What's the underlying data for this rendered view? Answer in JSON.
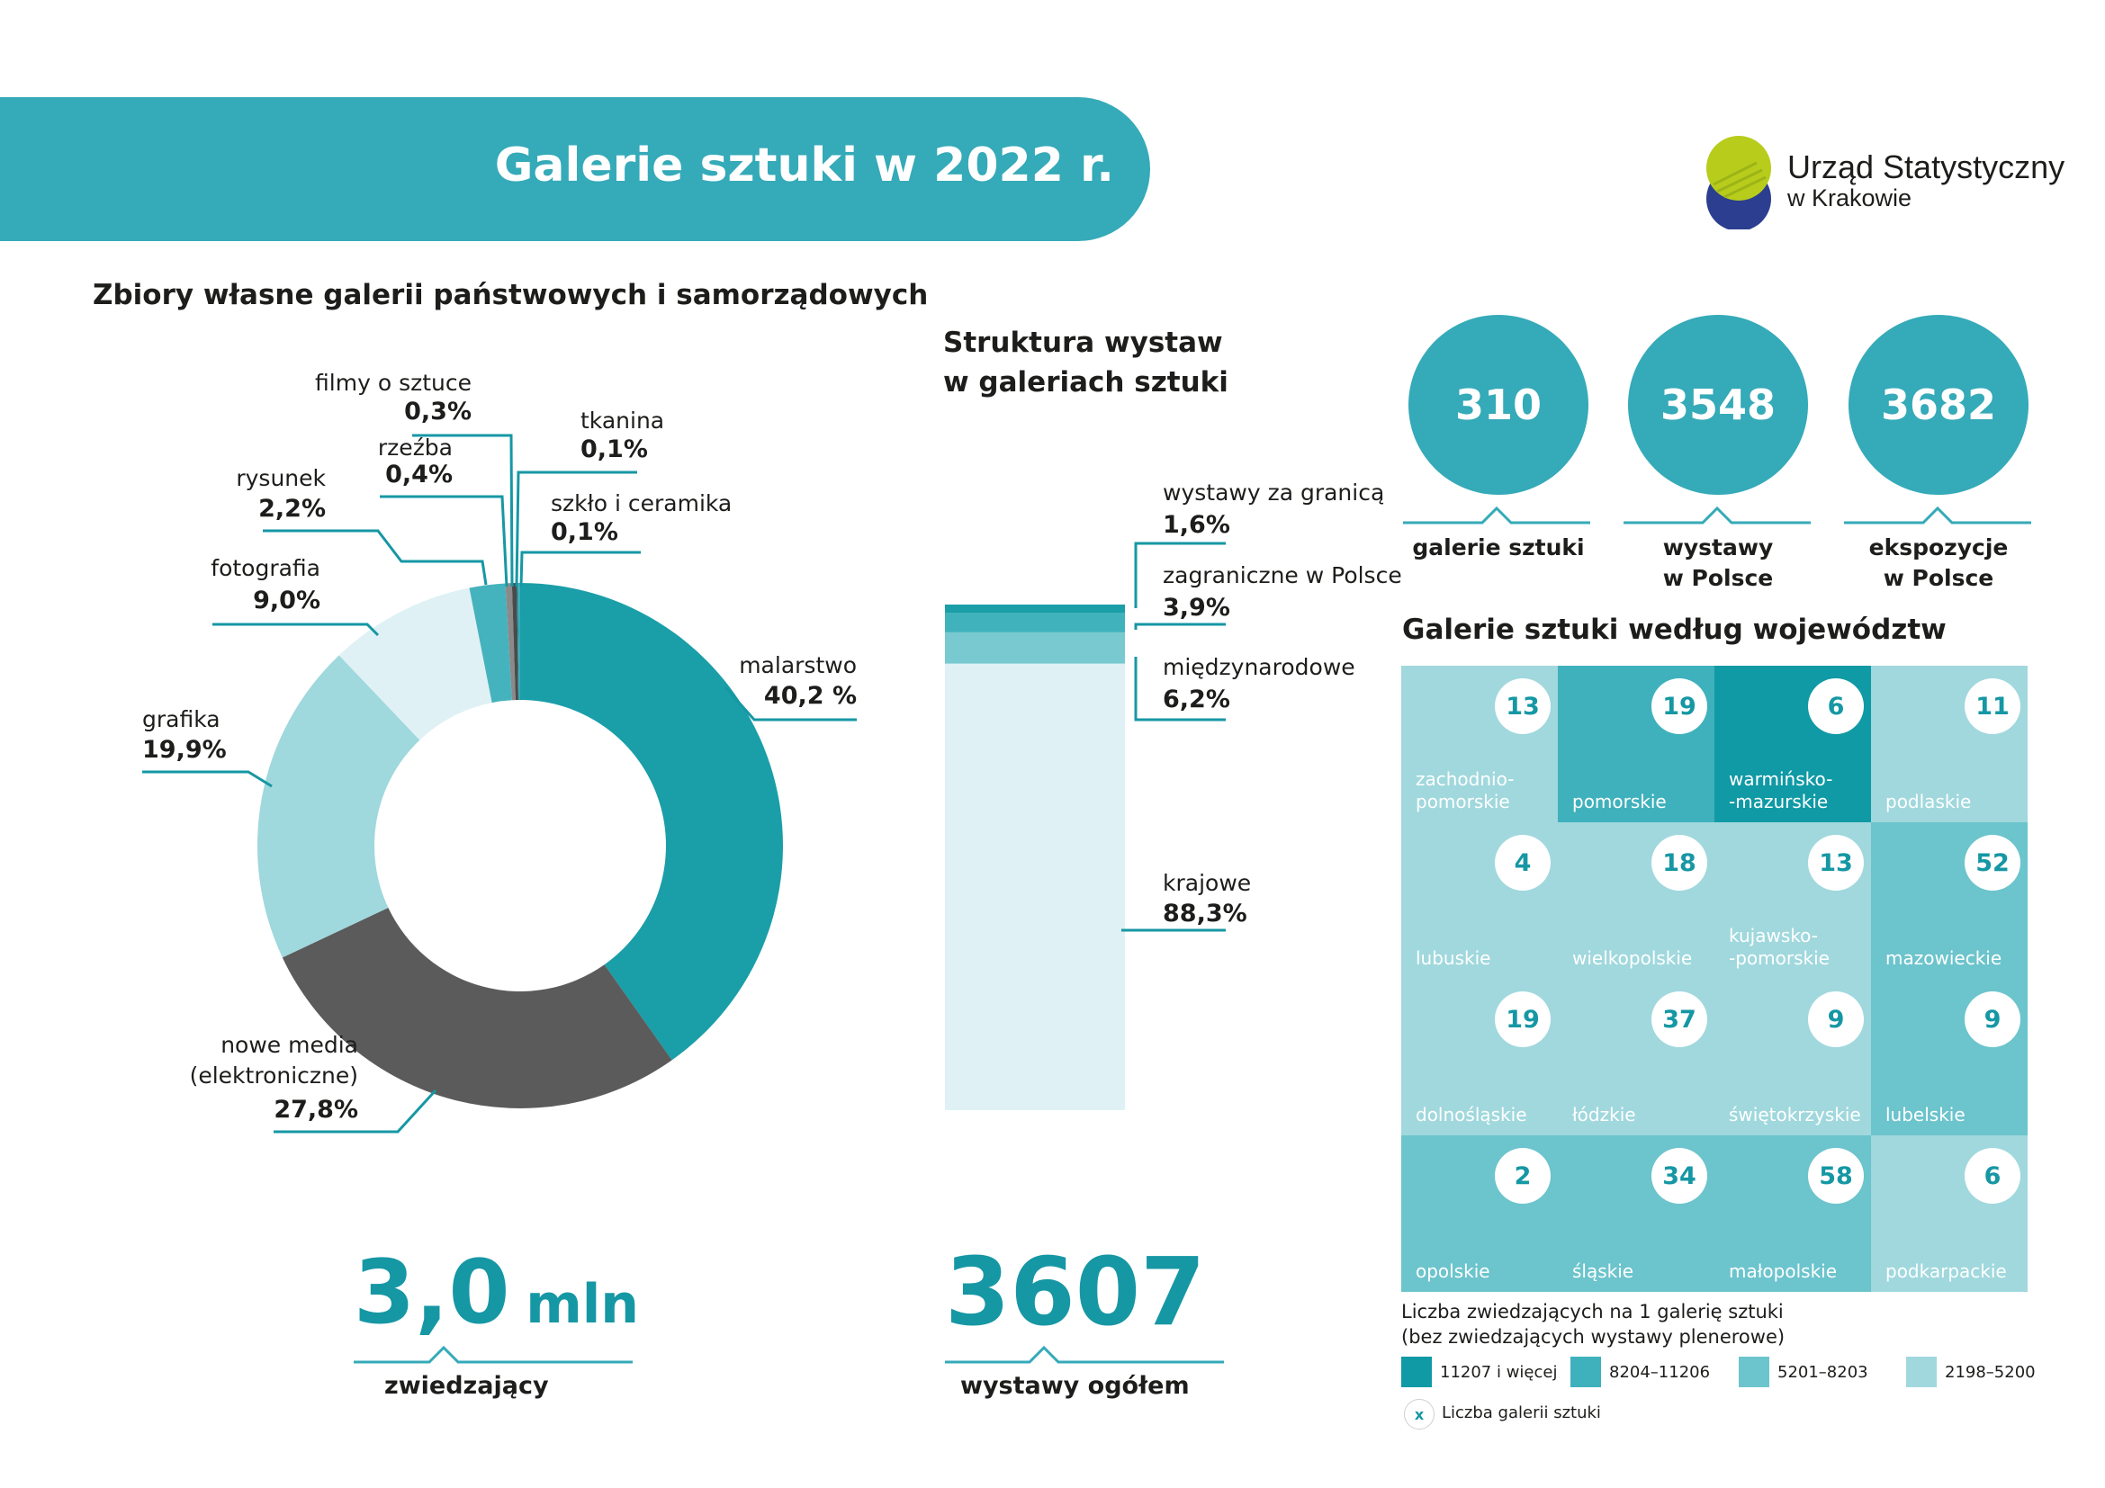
{
  "header": {
    "title": "Galerie sztuki w 2022 r."
  },
  "logo": {
    "line1": "Urząd Statystyczny",
    "line2": "w Krakowie"
  },
  "colors": {
    "accent": "#35aab8",
    "dark": "#1697a4",
    "grey": "#5b5b5b"
  },
  "collections": {
    "title": "Zbiory własne galerii państwowych i samorządowych",
    "big_value": "3,0",
    "big_unit": "mln",
    "big_label": "zwiedzający"
  },
  "exhibitions": {
    "title_line1": "Struktura wystaw",
    "title_line2": "w galeriach sztuki",
    "big_value": "3607",
    "big_label": "wystawy ogółem"
  },
  "stats": [
    {
      "value": "310",
      "label_line1": "galerie sztuki",
      "label_line2": ""
    },
    {
      "value": "3548",
      "label_line1": "wystawy",
      "label_line2": "w Polsce"
    },
    {
      "value": "3682",
      "label_line1": "ekspozycje",
      "label_line2": "w Polsce"
    }
  ],
  "map": {
    "title": "Galerie sztuki według województw",
    "legend_title_line1": "Liczba zwiedzających na 1 galerię sztuki",
    "legend_title_line2": "(bez zwiedzających wystawy plenerowe)",
    "legend": [
      {
        "label": "11207 i więcej",
        "color": "#0f9aa5"
      },
      {
        "label": "8204–11206",
        "color": "#3fb1bc"
      },
      {
        "label": "5201–8203",
        "color": "#6cc4cc"
      },
      {
        "label": "2198–5200",
        "color": "#a0d8dd"
      }
    ],
    "count_marker": "x",
    "count_label": "Liczba galerii sztuki"
  },
  "chart_data": [
    {
      "type": "pie",
      "title": "Zbiory własne galerii państwowych i samorządowych",
      "slices": [
        {
          "label": "malarstwo",
          "value": 40.2,
          "display": "40,2 %",
          "color": "#1a9ea8"
        },
        {
          "label": "nowe media",
          "label2": "(elektroniczne)",
          "value": 27.8,
          "display": "27,8%",
          "color": "#5b5b5b"
        },
        {
          "label": "grafika",
          "value": 19.9,
          "display": "19,9%",
          "color": "#9fd8dd"
        },
        {
          "label": "fotografia",
          "value": 9.0,
          "display": "9,0%",
          "color": "#dff1f5"
        },
        {
          "label": "rysunek",
          "value": 2.2,
          "display": "2,2%",
          "color": "#45b3bd"
        },
        {
          "label": "rzeźba",
          "value": 0.4,
          "display": "0,4%",
          "color": "#8a8a8a"
        },
        {
          "label": "filmy o sztuce",
          "value": 0.3,
          "display": "0,3%",
          "color": "#4a4a4a"
        },
        {
          "label": "tkanina",
          "value": 0.1,
          "display": "0,1%",
          "color": "#1a9ea8"
        },
        {
          "label": "szkło i ceramika",
          "value": 0.1,
          "display": "0,1%",
          "color": "#3fa9b3"
        }
      ]
    },
    {
      "type": "bar",
      "title": "Struktura wystaw w galeriach sztuki",
      "stacked": true,
      "segments": [
        {
          "label": "wystawy za granicą",
          "value": 1.6,
          "display": "1,6%",
          "color": "#1a9ea8"
        },
        {
          "label": "zagraniczne w Polsce",
          "value": 3.9,
          "display": "3,9%",
          "color": "#40b2bc"
        },
        {
          "label": "międzynarodowe",
          "value": 6.2,
          "display": "6,2%",
          "color": "#78c9d0"
        },
        {
          "label": "krajowe",
          "value": 88.3,
          "display": "88,3%",
          "color": "#dff1f5"
        }
      ]
    },
    {
      "type": "heatmap",
      "title": "Galerie sztuki według województw",
      "cells": [
        {
          "name": "zachodnio-\npomorskie",
          "count": "13",
          "class": 3
        },
        {
          "name": "pomorskie",
          "count": "19",
          "class": 1
        },
        {
          "name": "warmińsko-\n-mazurskie",
          "count": "6",
          "class": 0
        },
        {
          "name": "podlaskie",
          "count": "11",
          "class": 3
        },
        {
          "name": "lubuskie",
          "count": "4",
          "class": 3
        },
        {
          "name": "wielkopolskie",
          "count": "18",
          "class": 3
        },
        {
          "name": "kujawsko-\n-pomorskie",
          "count": "13",
          "class": 3
        },
        {
          "name": "mazowieckie",
          "count": "52",
          "class": 2
        },
        {
          "name": "dolnośląskie",
          "count": "19",
          "class": 3
        },
        {
          "name": "łódzkie",
          "count": "37",
          "class": 3
        },
        {
          "name": "świętokrzyskie",
          "count": "9",
          "class": 3
        },
        {
          "name": "lubelskie",
          "count": "9",
          "class": 2
        },
        {
          "name": "opolskie",
          "count": "2",
          "class": 2
        },
        {
          "name": "śląskie",
          "count": "34",
          "class": 2
        },
        {
          "name": "małopolskie",
          "count": "58",
          "class": 2
        },
        {
          "name": "podkarpackie",
          "count": "6",
          "class": 3
        }
      ]
    }
  ]
}
